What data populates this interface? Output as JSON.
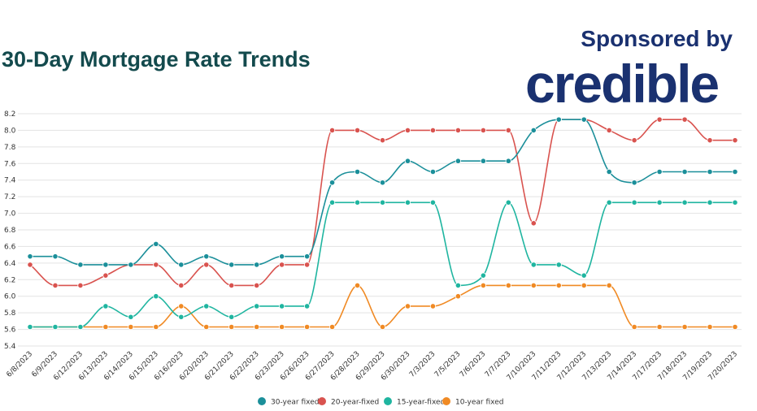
{
  "header": {
    "title": "30-Day Mortgage Rate Trends",
    "sponsor_text": "Sponsored by",
    "sponsor_logo_text": "credible",
    "title_color": "#134a4d",
    "sponsor_color": "#1a3170"
  },
  "chart_data": {
    "type": "line",
    "title": "30-Day Mortgage Rate Trends",
    "xlabel": "",
    "ylabel": "",
    "ylim": [
      5.4,
      8.2
    ],
    "yticks": [
      5.4,
      5.6,
      5.8,
      6.0,
      6.2,
      6.4,
      6.6,
      6.8,
      7.0,
      7.2,
      7.4,
      7.6,
      7.8,
      8.0,
      8.2
    ],
    "ytick_labels": [
      "5.4",
      "5.6",
      "5.8",
      "6.0",
      "6.2",
      "6.4",
      "6.6",
      "6.8",
      "7.0",
      "7.2",
      "7.4",
      "7.6",
      "7.8",
      "8.0",
      "8.2"
    ],
    "grid": true,
    "legend_position": "bottom-center",
    "categories": [
      "6/8/2023",
      "6/9/2023",
      "6/12/2023",
      "6/13/2023",
      "6/14/2023",
      "6/15/2023",
      "6/16/2023",
      "6/20/2023",
      "6/21/2023",
      "6/22/2023",
      "6/23/2023",
      "6/26/2023",
      "6/27/2023",
      "6/28/2023",
      "6/29/2023",
      "6/30/2023",
      "7/3/2023",
      "7/5/2023",
      "7/6/2023",
      "7/7/2023",
      "7/10/2023",
      "7/11/2023",
      "7/12/2023",
      "7/13/2023",
      "7/14/2023",
      "7/17/2023",
      "7/18/2023",
      "7/19/2023",
      "7/20/2023"
    ],
    "series": [
      {
        "name": "30-year fixed",
        "color": "#1b8f9a",
        "values": [
          6.48,
          6.48,
          6.38,
          6.38,
          6.38,
          6.63,
          6.38,
          6.48,
          6.38,
          6.38,
          6.48,
          6.48,
          7.37,
          7.5,
          7.37,
          7.63,
          7.5,
          7.63,
          7.63,
          7.63,
          8.0,
          8.13,
          8.13,
          7.5,
          7.37,
          7.5,
          7.5,
          7.5,
          7.5
        ]
      },
      {
        "name": "20-year-fixed",
        "color": "#d9534f",
        "values": [
          6.38,
          6.13,
          6.13,
          6.25,
          6.38,
          6.38,
          6.13,
          6.38,
          6.13,
          6.13,
          6.38,
          6.38,
          8.0,
          8.0,
          7.88,
          8.0,
          8.0,
          8.0,
          8.0,
          8.0,
          6.88,
          8.13,
          8.13,
          8.0,
          7.88,
          8.13,
          8.13,
          7.88,
          7.88
        ]
      },
      {
        "name": "15-year-fixed",
        "color": "#1fb5a0",
        "values": [
          5.63,
          5.63,
          5.63,
          5.88,
          5.75,
          6.0,
          5.75,
          5.88,
          5.75,
          5.88,
          5.88,
          5.88,
          7.13,
          7.13,
          7.13,
          7.13,
          7.13,
          6.13,
          6.25,
          7.13,
          6.38,
          6.38,
          6.25,
          7.13,
          7.13,
          7.13,
          7.13,
          7.13,
          7.13
        ]
      },
      {
        "name": "10-year fixed",
        "color": "#f08a24",
        "values": [
          5.63,
          5.63,
          5.63,
          5.63,
          5.63,
          5.63,
          5.88,
          5.63,
          5.63,
          5.63,
          5.63,
          5.63,
          5.63,
          6.13,
          5.63,
          5.88,
          5.88,
          6.0,
          6.13,
          6.13,
          6.13,
          6.13,
          6.13,
          6.13,
          5.63,
          5.63,
          5.63,
          5.63,
          5.63
        ]
      }
    ]
  }
}
